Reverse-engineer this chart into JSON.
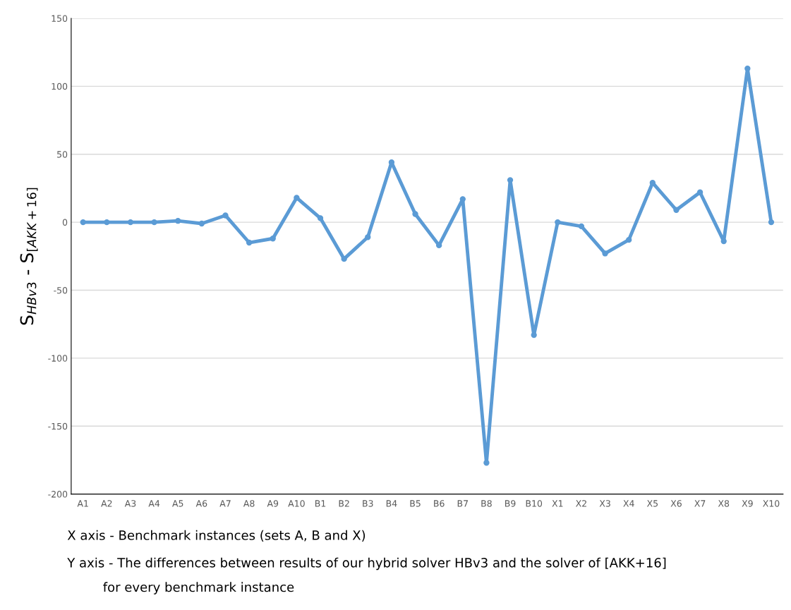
{
  "chart_data": {
    "type": "line",
    "ylabel": "S$_{HBv3}$ - S$_{[AKK+16]}$",
    "categories": [
      "A1",
      "A2",
      "A3",
      "A4",
      "A5",
      "A6",
      "A7",
      "A8",
      "A9",
      "A10",
      "B1",
      "B2",
      "B3",
      "B4",
      "B5",
      "B6",
      "B7",
      "B8",
      "B9",
      "B10",
      "X1",
      "X2",
      "X3",
      "X4",
      "X5",
      "X6",
      "X7",
      "X8",
      "X9",
      "X10"
    ],
    "series": [
      {
        "color": "#5b9bd5",
        "values": [
          0,
          0,
          0,
          0,
          1,
          -1,
          5,
          -15,
          -12,
          18,
          3,
          -27,
          -11,
          44,
          6,
          -17,
          17,
          -177,
          31,
          -83,
          0,
          -3,
          -23,
          -13,
          29,
          9,
          22,
          -14,
          113,
          0
        ]
      }
    ],
    "ylim": [
      -200,
      150
    ],
    "yticks": [
      -200,
      -150,
      -100,
      -50,
      0,
      50,
      100,
      150
    ],
    "grid": "y",
    "marker": "circle",
    "line_style": "solid",
    "annotations": [
      "X axis - Benchmark instances (sets A, B and X)",
      "Y axis - The differences between results of our hybrid solver HBv3 and the solver of [AKK+16]",
      "for every benchmark instance"
    ]
  }
}
